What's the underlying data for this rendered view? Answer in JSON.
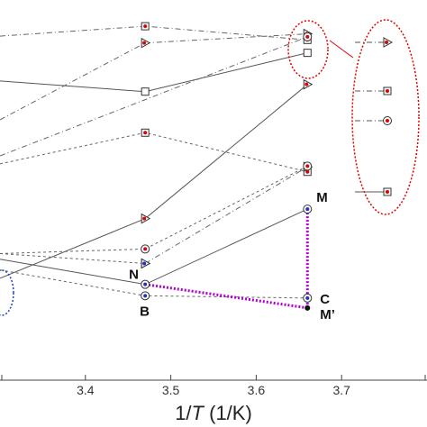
{
  "chart_data": {
    "type": "line",
    "xlabel_prefix": "1/",
    "xlabel_var": "T",
    "xlabel_units": " (1/K)",
    "xlim": [
      3.3,
      3.8
    ],
    "ylim": [
      0,
      1
    ],
    "x_ticks": [
      3.4,
      3.5,
      3.6,
      3.7
    ],
    "x_tick_labels": [
      "3.4",
      "3.5",
      "3.6",
      "3.7"
    ],
    "grid": false,
    "series": [
      {
        "dash": "6,3,1,3",
        "color": "#666666",
        "marker": "square",
        "points": [
          [
            3.3,
            0.905
          ],
          [
            3.47,
            0.931
          ],
          [
            3.66,
            0.895
          ]
        ]
      },
      {
        "dash": "6,3,1,3",
        "color": "#666666",
        "marker": "triangle",
        "points": [
          [
            3.3,
            0.685
          ],
          [
            3.47,
            0.887
          ],
          [
            3.66,
            0.911
          ]
        ]
      },
      {
        "dash": "",
        "color": "#555555",
        "marker": "square-open",
        "points": [
          [
            3.3,
            0.787
          ],
          [
            3.47,
            0.759
          ],
          [
            3.66,
            0.861
          ]
        ]
      },
      {
        "dash": "6,3,1,3",
        "color": "#666666",
        "marker": "circle",
        "points": [
          [
            3.3,
            0.59
          ],
          [
            3.66,
            0.903
          ]
        ]
      },
      {
        "dash": "3,3",
        "color": "#666666",
        "marker": "square",
        "points": [
          [
            3.3,
            0.569
          ],
          [
            3.47,
            0.651
          ],
          [
            3.66,
            0.548
          ]
        ]
      },
      {
        "dash": "6,3,1,3",
        "color": "#666666",
        "marker": "triangle",
        "points": [
          [
            3.47,
            0.307
          ],
          [
            3.66,
            0.561
          ]
        ]
      },
      {
        "dash": "",
        "color": "#555555",
        "marker": "triangle",
        "points": [
          [
            3.3,
            0.268
          ],
          [
            3.47,
            0.425
          ],
          [
            3.66,
            0.778
          ]
        ]
      },
      {
        "dash": "3,3",
        "color": "#666666",
        "marker": "circle",
        "points": [
          [
            3.3,
            0.333
          ],
          [
            3.47,
            0.345
          ],
          [
            3.66,
            0.563
          ]
        ]
      },
      {
        "dash": "3,3",
        "color": "#666666",
        "marker": "triangle-blue",
        "points": [
          [
            3.3,
            0.333
          ],
          [
            3.47,
            0.307
          ]
        ]
      },
      {
        "dash": "",
        "color": "#555555",
        "marker": "circle-blue",
        "points": [
          [
            3.3,
            0.318
          ],
          [
            3.47,
            0.252
          ],
          [
            3.66,
            0.45
          ]
        ]
      },
      {
        "dash": "3,3",
        "color": "#666666",
        "marker": "circle-blue",
        "points": [
          [
            3.3,
            0.29
          ],
          [
            3.47,
            0.222
          ],
          [
            3.66,
            0.216
          ]
        ]
      }
    ],
    "highlight_lines": [
      {
        "color": "#b000d0",
        "points": [
          [
            3.47,
            0.252
          ],
          [
            3.66,
            0.19
          ]
        ]
      },
      {
        "color": "#b000d0",
        "points": [
          [
            3.66,
            0.45
          ],
          [
            3.66,
            0.19
          ]
        ]
      }
    ],
    "annotations": [
      {
        "text": "M",
        "x": 3.66,
        "y": 0.45
      },
      {
        "text": "N",
        "x": 3.47,
        "y": 0.252
      },
      {
        "text": "C",
        "x": 3.66,
        "y": 0.216
      },
      {
        "text": "B",
        "x": 3.47,
        "y": 0.222
      },
      {
        "text": "M’",
        "x": 3.66,
        "y": 0.19
      }
    ],
    "inset": {
      "shape": "red-dotted-ellipse",
      "markers": [
        "triangle",
        "square",
        "circle",
        "square"
      ]
    }
  }
}
